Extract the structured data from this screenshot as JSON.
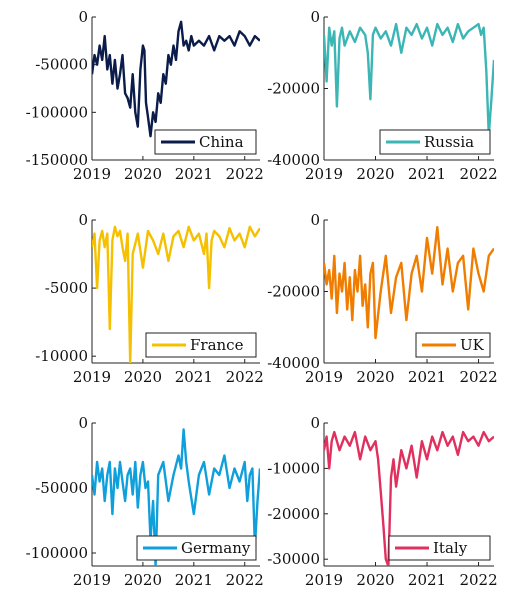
{
  "chart_data": [
    {
      "type": "line",
      "series": [
        {
          "name": "China",
          "color": "#0b1c4a"
        }
      ],
      "ylim": [
        -150000,
        0
      ],
      "xlim": [
        2019,
        2022.3
      ],
      "yticks": [
        0,
        -50000,
        -100000,
        -150000
      ],
      "ytick_labels": [
        "0",
        "-50000",
        "-100000",
        "-150000"
      ],
      "xticks": [
        2019,
        2020,
        2021,
        2022
      ],
      "xtick_labels": [
        "2019",
        "2020",
        "2021",
        "2022"
      ],
      "legend_position": "bottom-right",
      "grid": false,
      "x": [
        2019.0,
        2019.05,
        2019.1,
        2019.15,
        2019.2,
        2019.25,
        2019.3,
        2019.35,
        2019.4,
        2019.45,
        2019.5,
        2019.55,
        2019.6,
        2019.65,
        2019.7,
        2019.75,
        2019.8,
        2019.85,
        2019.9,
        2019.95,
        2020.0,
        2020.03,
        2020.06,
        2020.1,
        2020.15,
        2020.2,
        2020.25,
        2020.3,
        2020.35,
        2020.4,
        2020.45,
        2020.5,
        2020.55,
        2020.6,
        2020.65,
        2020.7,
        2020.75,
        2020.8,
        2020.85,
        2020.9,
        2020.95,
        2021.0,
        2021.1,
        2021.2,
        2021.3,
        2021.4,
        2021.5,
        2021.6,
        2021.7,
        2021.8,
        2021.9,
        2022.0,
        2022.1,
        2022.2,
        2022.3
      ],
      "y": [
        -60000,
        -40000,
        -50000,
        -30000,
        -45000,
        -20000,
        -55000,
        -40000,
        -70000,
        -45000,
        -75000,
        -60000,
        -40000,
        -80000,
        -85000,
        -95000,
        -60000,
        -100000,
        -115000,
        -55000,
        -30000,
        -35000,
        -90000,
        -105000,
        -125000,
        -100000,
        -110000,
        -80000,
        -90000,
        -60000,
        -70000,
        -40000,
        -50000,
        -30000,
        -45000,
        -15000,
        -5000,
        -30000,
        -25000,
        -35000,
        -20000,
        -30000,
        -25000,
        -30000,
        -20000,
        -35000,
        -20000,
        -25000,
        -20000,
        -30000,
        -15000,
        -20000,
        -30000,
        -20000,
        -25000
      ]
    },
    {
      "type": "line",
      "series": [
        {
          "name": "Russia",
          "color": "#3cb5b5"
        }
      ],
      "ylim": [
        -40000,
        0
      ],
      "xlim": [
        2019,
        2022.3
      ],
      "yticks": [
        0,
        -20000,
        -40000
      ],
      "ytick_labels": [
        "0",
        "-20000",
        "-40000"
      ],
      "xticks": [
        2019,
        2020,
        2021,
        2022
      ],
      "xtick_labels": [
        "2019",
        "2020",
        "2021",
        "2022"
      ],
      "legend_position": "bottom-right",
      "grid": false,
      "x": [
        2019.0,
        2019.05,
        2019.1,
        2019.15,
        2019.2,
        2019.25,
        2019.3,
        2019.35,
        2019.4,
        2019.5,
        2019.6,
        2019.7,
        2019.8,
        2019.85,
        2019.9,
        2019.95,
        2020.0,
        2020.1,
        2020.2,
        2020.3,
        2020.4,
        2020.5,
        2020.6,
        2020.7,
        2020.8,
        2020.9,
        2021.0,
        2021.1,
        2021.2,
        2021.3,
        2021.4,
        2021.5,
        2021.6,
        2021.7,
        2021.8,
        2021.9,
        2022.0,
        2022.05,
        2022.1,
        2022.15,
        2022.2,
        2022.25,
        2022.3
      ],
      "y": [
        -5000,
        -18000,
        -3000,
        -8000,
        -4000,
        -25000,
        -6000,
        -3000,
        -8000,
        -4000,
        -7000,
        -3000,
        -5000,
        -10000,
        -23000,
        -5000,
        -3000,
        -6000,
        -4000,
        -8000,
        -2000,
        -10000,
        -3000,
        -5000,
        -2000,
        -6000,
        -3000,
        -8000,
        -2000,
        -5000,
        -3000,
        -7000,
        -2000,
        -6000,
        -4000,
        -3000,
        -2000,
        -5000,
        -3000,
        -15000,
        -33000,
        -23000,
        -12000
      ]
    },
    {
      "type": "line",
      "series": [
        {
          "name": "France",
          "color": "#f5c000"
        }
      ],
      "ylim": [
        -10500,
        0
      ],
      "xlim": [
        2019,
        2022.3
      ],
      "yticks": [
        0,
        -5000,
        -10000
      ],
      "ytick_labels": [
        "0",
        "-5000",
        "-10000"
      ],
      "xticks": [
        2019,
        2020,
        2021,
        2022
      ],
      "xtick_labels": [
        "2019",
        "2020",
        "2021",
        "2022"
      ],
      "legend_position": "bottom-right",
      "grid": false,
      "x": [
        2019.0,
        2019.05,
        2019.1,
        2019.15,
        2019.2,
        2019.25,
        2019.3,
        2019.35,
        2019.4,
        2019.45,
        2019.5,
        2019.55,
        2019.6,
        2019.65,
        2019.7,
        2019.75,
        2019.8,
        2019.9,
        2020.0,
        2020.1,
        2020.2,
        2020.3,
        2020.4,
        2020.5,
        2020.6,
        2020.7,
        2020.8,
        2020.9,
        2021.0,
        2021.1,
        2021.2,
        2021.25,
        2021.3,
        2021.35,
        2021.4,
        2021.5,
        2021.6,
        2021.7,
        2021.8,
        2021.9,
        2022.0,
        2022.1,
        2022.2,
        2022.3
      ],
      "y": [
        -2000,
        -1000,
        -5000,
        -1500,
        -800,
        -2000,
        -1000,
        -8000,
        -1500,
        -500,
        -1200,
        -800,
        -2000,
        -3000,
        -1000,
        -10500,
        -2500,
        -1000,
        -3500,
        -800,
        -1500,
        -2500,
        -1000,
        -3000,
        -1200,
        -800,
        -2000,
        -500,
        -1500,
        -1000,
        -2500,
        -1000,
        -5000,
        -1500,
        -800,
        -1200,
        -2000,
        -600,
        -1500,
        -1000,
        -2000,
        -500,
        -1200,
        -600
      ]
    },
    {
      "type": "line",
      "series": [
        {
          "name": "UK",
          "color": "#f07d00"
        }
      ],
      "ylim": [
        -40000,
        0
      ],
      "xlim": [
        2019,
        2022.3
      ],
      "yticks": [
        0,
        -20000,
        -40000
      ],
      "ytick_labels": [
        "0",
        "-20000",
        "-40000"
      ],
      "xticks": [
        2019,
        2020,
        2021,
        2022
      ],
      "xtick_labels": [
        "2019",
        "2020",
        "2021",
        "2022"
      ],
      "legend_position": "bottom-right",
      "grid": false,
      "x": [
        2019.0,
        2019.05,
        2019.1,
        2019.15,
        2019.2,
        2019.25,
        2019.3,
        2019.35,
        2019.4,
        2019.45,
        2019.5,
        2019.55,
        2019.6,
        2019.65,
        2019.7,
        2019.75,
        2019.8,
        2019.85,
        2019.9,
        2019.95,
        2020.0,
        2020.1,
        2020.2,
        2020.3,
        2020.4,
        2020.5,
        2020.6,
        2020.7,
        2020.8,
        2020.9,
        2021.0,
        2021.1,
        2021.2,
        2021.3,
        2021.4,
        2021.5,
        2021.6,
        2021.7,
        2021.8,
        2021.9,
        2022.0,
        2022.1,
        2022.2,
        2022.3
      ],
      "y": [
        -12000,
        -18000,
        -14000,
        -22000,
        -10000,
        -26000,
        -15000,
        -20000,
        -12000,
        -25000,
        -16000,
        -28000,
        -14000,
        -20000,
        -10000,
        -24000,
        -18000,
        -30000,
        -15000,
        -12000,
        -33000,
        -20000,
        -10000,
        -26000,
        -16000,
        -12000,
        -28000,
        -15000,
        -10000,
        -20000,
        -5000,
        -15000,
        -2000,
        -18000,
        -8000,
        -20000,
        -12000,
        -10000,
        -25000,
        -8000,
        -15000,
        -20000,
        -10000,
        -8000
      ]
    },
    {
      "type": "line",
      "series": [
        {
          "name": "Germany",
          "color": "#0f9fdb"
        }
      ],
      "ylim": [
        -110000,
        0
      ],
      "xlim": [
        2019,
        2022.3
      ],
      "yticks": [
        0,
        -50000,
        -100000
      ],
      "ytick_labels": [
        "0",
        "-50000",
        "-100000"
      ],
      "xticks": [
        2019,
        2020,
        2021,
        2022
      ],
      "xtick_labels": [
        "2019",
        "2020",
        "2021",
        "2022"
      ],
      "legend_position": "bottom-right",
      "grid": false,
      "x": [
        2019.0,
        2019.05,
        2019.1,
        2019.15,
        2019.2,
        2019.25,
        2019.3,
        2019.35,
        2019.4,
        2019.45,
        2019.5,
        2019.55,
        2019.6,
        2019.65,
        2019.7,
        2019.75,
        2019.8,
        2019.85,
        2019.9,
        2019.95,
        2020.0,
        2020.05,
        2020.1,
        2020.15,
        2020.2,
        2020.25,
        2020.3,
        2020.4,
        2020.5,
        2020.6,
        2020.7,
        2020.75,
        2020.8,
        2020.85,
        2020.9,
        2021.0,
        2021.1,
        2021.2,
        2021.3,
        2021.4,
        2021.5,
        2021.6,
        2021.7,
        2021.8,
        2021.9,
        2022.0,
        2022.05,
        2022.1,
        2022.15,
        2022.2,
        2022.25,
        2022.3
      ],
      "y": [
        -40000,
        -55000,
        -30000,
        -45000,
        -35000,
        -60000,
        -40000,
        -30000,
        -70000,
        -35000,
        -50000,
        -30000,
        -45000,
        -60000,
        -40000,
        -35000,
        -55000,
        -30000,
        -65000,
        -40000,
        -30000,
        -50000,
        -45000,
        -90000,
        -60000,
        -110000,
        -40000,
        -30000,
        -60000,
        -40000,
        -25000,
        -35000,
        -5000,
        -30000,
        -45000,
        -70000,
        -40000,
        -30000,
        -55000,
        -35000,
        -40000,
        -25000,
        -50000,
        -35000,
        -45000,
        -30000,
        -60000,
        -40000,
        -35000,
        -95000,
        -60000,
        -35000
      ]
    },
    {
      "type": "line",
      "series": [
        {
          "name": "Italy",
          "color": "#e0305e"
        }
      ],
      "ylim": [
        -31500,
        0
      ],
      "xlim": [
        2019,
        2022.3
      ],
      "yticks": [
        0,
        -10000,
        -20000,
        -30000
      ],
      "ytick_labels": [
        "0",
        "-10000",
        "-20000",
        "-30000"
      ],
      "xticks": [
        2019,
        2020,
        2021,
        2022
      ],
      "xtick_labels": [
        "2019",
        "2020",
        "2021",
        "2022"
      ],
      "legend_position": "bottom-right",
      "grid": false,
      "x": [
        2019.0,
        2019.05,
        2019.1,
        2019.15,
        2019.2,
        2019.3,
        2019.4,
        2019.5,
        2019.6,
        2019.7,
        2019.8,
        2019.9,
        2020.0,
        2020.05,
        2020.1,
        2020.15,
        2020.2,
        2020.25,
        2020.3,
        2020.35,
        2020.4,
        2020.5,
        2020.6,
        2020.7,
        2020.8,
        2020.9,
        2021.0,
        2021.1,
        2021.2,
        2021.3,
        2021.4,
        2021.5,
        2021.6,
        2021.7,
        2021.8,
        2021.9,
        2022.0,
        2022.1,
        2022.2,
        2022.3
      ],
      "y": [
        -6000,
        -3000,
        -10000,
        -4000,
        -2000,
        -6000,
        -3000,
        -5000,
        -2000,
        -8000,
        -3000,
        -6000,
        -4000,
        -8000,
        -15000,
        -22000,
        -30000,
        -31500,
        -12000,
        -8000,
        -14000,
        -6000,
        -10000,
        -5000,
        -12000,
        -4000,
        -8000,
        -3000,
        -6000,
        -2000,
        -5000,
        -3000,
        -7000,
        -2000,
        -4000,
        -3000,
        -5000,
        -2000,
        -4000,
        -3000
      ]
    }
  ]
}
